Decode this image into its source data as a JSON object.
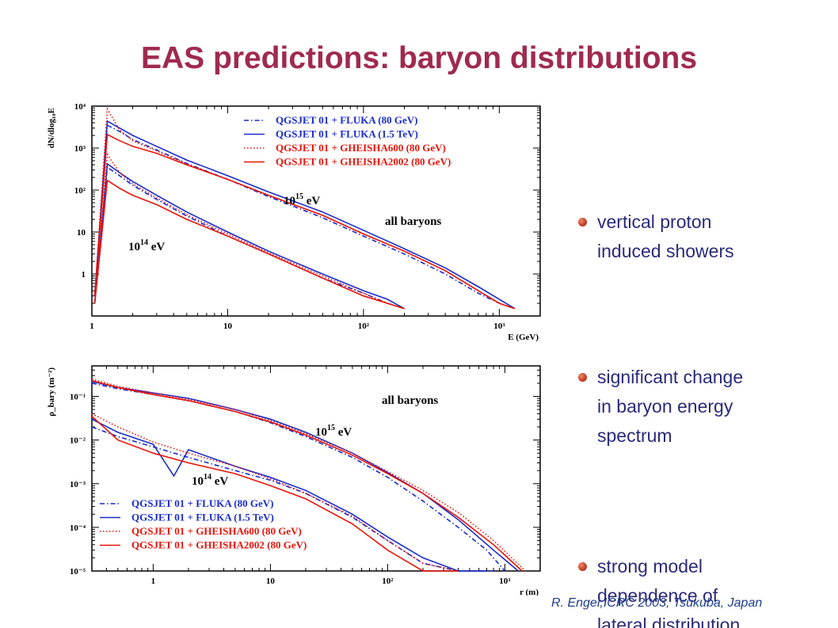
{
  "title": "EAS predictions: baryon distributions",
  "bullets": [
    {
      "lines": [
        "vertical proton",
        "induced showers"
      ]
    },
    {
      "lines": [
        "significant change",
        "in baryon energy",
        "spectrum"
      ]
    },
    {
      "lines": [
        "strong model",
        "dependence of",
        "lateral distribution"
      ]
    }
  ],
  "footer": "R. Engel,ICRC 2003, Tsukuba, Japan",
  "colors": {
    "blue": "#1a2ccc",
    "red": "#e8140a",
    "title": "#a02a4f",
    "bullet_text": "#2a2a7a"
  },
  "chart_data": [
    {
      "type": "line",
      "ylabel": "dN/dlog₁₀E",
      "xlabel": "E (GeV)",
      "log_x": true,
      "log_y": true,
      "xlim": [
        1,
        2000
      ],
      "ylim": [
        0.1,
        10000
      ],
      "x_ticks": [
        "1",
        "10",
        "10²",
        "10³"
      ],
      "y_ticks": [
        "1",
        "10",
        "10²",
        "10³",
        "10⁴"
      ],
      "annotations": [
        {
          "base": "10",
          "exp": "15",
          "unit": " eV"
        },
        {
          "base": "10",
          "exp": "14",
          "unit": " eV"
        },
        {
          "text": "all baryons"
        }
      ],
      "legend": [
        {
          "label": "QGSJET 01 + FLUKA (80 GeV)",
          "color": "#1a2ccc",
          "dash": "dashdot"
        },
        {
          "label": "QGSJET 01 + FLUKA (1.5 TeV)",
          "color": "#1a2ccc",
          "dash": "solid"
        },
        {
          "label": "QGSJET 01 + GHEISHA600 (80 GeV)",
          "color": "#e8140a",
          "dash": "dot"
        },
        {
          "label": "QGSJET 01 + GHEISHA2002 (80 GeV)",
          "color": "#e8140a",
          "dash": "solid"
        }
      ],
      "legend_position": "top-right",
      "series": [
        {
          "group": "1e15",
          "color": "#1a2ccc",
          "dash": "dashdot",
          "x": [
            1.05,
            1.3,
            1.6,
            2,
            3,
            5,
            10,
            20,
            50,
            100,
            200,
            400,
            700,
            1000,
            1300
          ],
          "y": [
            0.3,
            3500,
            2500,
            1600,
            900,
            430,
            180,
            70,
            22,
            8,
            3,
            1,
            0.35,
            0.2,
            0.15
          ]
        },
        {
          "group": "1e15",
          "color": "#1a2ccc",
          "dash": "solid",
          "x": [
            1.05,
            1.3,
            1.6,
            2,
            3,
            5,
            10,
            20,
            50,
            100,
            200,
            400,
            700,
            1000,
            1300
          ],
          "y": [
            0.3,
            4400,
            3000,
            2000,
            1100,
            520,
            220,
            90,
            30,
            11,
            4,
            1.4,
            0.5,
            0.25,
            0.15
          ]
        },
        {
          "group": "1e15",
          "color": "#e8140a",
          "dash": "dot",
          "x": [
            1.05,
            1.3,
            1.6,
            2,
            3,
            5,
            10,
            20,
            50,
            100,
            200,
            400,
            700,
            1000,
            1300
          ],
          "y": [
            0.3,
            8500,
            2700,
            1500,
            850,
            420,
            180,
            75,
            25,
            9,
            3.5,
            1.2,
            0.4,
            0.2,
            0.15
          ]
        },
        {
          "group": "1e15",
          "color": "#e8140a",
          "dash": "solid",
          "x": [
            1.05,
            1.3,
            1.6,
            2,
            3,
            5,
            10,
            20,
            50,
            100,
            200,
            400,
            700,
            1000,
            1300
          ],
          "y": [
            0.3,
            2100,
            1500,
            1100,
            750,
            400,
            180,
            75,
            25,
            9,
            3.5,
            1.2,
            0.4,
            0.2,
            0.15
          ]
        },
        {
          "group": "1e14",
          "color": "#1a2ccc",
          "dash": "dashdot",
          "x": [
            1.05,
            1.3,
            1.6,
            2,
            3,
            5,
            10,
            20,
            50,
            100,
            150,
            200
          ],
          "y": [
            0.2,
            350,
            220,
            130,
            60,
            24,
            8,
            3,
            0.8,
            0.35,
            0.2,
            0.15
          ]
        },
        {
          "group": "1e14",
          "color": "#1a2ccc",
          "dash": "solid",
          "x": [
            1.05,
            1.3,
            1.6,
            2,
            3,
            5,
            10,
            20,
            50,
            100,
            150,
            200
          ],
          "y": [
            0.2,
            420,
            260,
            160,
            75,
            30,
            10,
            3.5,
            1,
            0.4,
            0.25,
            0.15
          ]
        },
        {
          "group": "1e14",
          "color": "#e8140a",
          "dash": "dot",
          "x": [
            1.05,
            1.3,
            1.6,
            2,
            3,
            5,
            10,
            20,
            50,
            100,
            150,
            200
          ],
          "y": [
            0.2,
            700,
            260,
            140,
            65,
            26,
            9,
            3.2,
            0.9,
            0.35,
            0.2,
            0.15
          ]
        },
        {
          "group": "1e14",
          "color": "#e8140a",
          "dash": "solid",
          "x": [
            1.05,
            1.3,
            1.6,
            2,
            3,
            5,
            10,
            20,
            50,
            100,
            150,
            200
          ],
          "y": [
            0.2,
            170,
            110,
            75,
            45,
            20,
            8,
            3,
            0.8,
            0.3,
            0.2,
            0.15
          ]
        }
      ]
    },
    {
      "type": "line",
      "ylabel": "ρ_bary (m⁻²)",
      "xlabel": "r (m)",
      "log_x": true,
      "log_y": true,
      "xlim": [
        0.3,
        2000
      ],
      "ylim": [
        1e-05,
        0.5
      ],
      "x_ticks": [
        "1",
        "10",
        "10²",
        "10³"
      ],
      "y_ticks": [
        "10⁻¹",
        "10⁻²",
        "10⁻³",
        "10⁻⁴",
        "10⁻⁵"
      ],
      "annotations": [
        {
          "text": "all baryons"
        },
        {
          "base": "10",
          "exp": "15",
          "unit": " eV"
        },
        {
          "base": "10",
          "exp": "14",
          "unit": " eV"
        }
      ],
      "legend": [
        {
          "label": "QGSJET 01 + FLUKA (80 GeV)",
          "color": "#1a2ccc",
          "dash": "dashdot"
        },
        {
          "label": "QGSJET 01 + FLUKA (1.5 TeV)",
          "color": "#1a2ccc",
          "dash": "solid"
        },
        {
          "label": "QGSJET 01 + GHEISHA600 (80 GeV)",
          "color": "#e8140a",
          "dash": "dot"
        },
        {
          "label": "QGSJET 01 + GHEISHA2002 (80 GeV)",
          "color": "#e8140a",
          "dash": "solid"
        }
      ],
      "legend_position": "bottom-left",
      "series": [
        {
          "group": "1e15",
          "color": "#1a2ccc",
          "dash": "dashdot",
          "x": [
            0.3,
            0.5,
            1,
            2,
            5,
            10,
            20,
            50,
            100,
            200,
            400,
            700,
            1000
          ],
          "y": [
            0.2,
            0.15,
            0.11,
            0.08,
            0.045,
            0.025,
            0.012,
            0.004,
            0.0014,
            0.0004,
            0.0001,
            3e-05,
            1e-05
          ]
        },
        {
          "group": "1e15",
          "color": "#1a2ccc",
          "dash": "solid",
          "x": [
            0.3,
            0.5,
            1,
            2,
            5,
            10,
            20,
            50,
            100,
            200,
            400,
            800,
            1300
          ],
          "y": [
            0.22,
            0.16,
            0.12,
            0.09,
            0.05,
            0.03,
            0.015,
            0.005,
            0.0018,
            0.0006,
            0.00015,
            3e-05,
            1e-05
          ]
        },
        {
          "group": "1e15",
          "color": "#e8140a",
          "dash": "dot",
          "x": [
            0.3,
            0.5,
            1,
            2,
            5,
            10,
            20,
            50,
            100,
            200,
            400,
            800,
            1500
          ],
          "y": [
            0.25,
            0.17,
            0.12,
            0.085,
            0.05,
            0.028,
            0.014,
            0.005,
            0.0019,
            0.0007,
            0.00022,
            5e-05,
            1e-05
          ]
        },
        {
          "group": "1e15",
          "color": "#e8140a",
          "dash": "solid",
          "x": [
            0.3,
            0.5,
            1,
            2,
            5,
            10,
            20,
            50,
            100,
            200,
            400,
            800,
            1400
          ],
          "y": [
            0.23,
            0.16,
            0.11,
            0.08,
            0.045,
            0.026,
            0.013,
            0.0045,
            0.0017,
            0.0006,
            0.00017,
            4e-05,
            1e-05
          ]
        },
        {
          "group": "1e14",
          "color": "#1a2ccc",
          "dash": "dashdot",
          "x": [
            0.3,
            0.5,
            1,
            2,
            5,
            10,
            20,
            50,
            100,
            200,
            400,
            800
          ],
          "y": [
            0.02,
            0.012,
            0.007,
            0.004,
            0.002,
            0.0012,
            0.0006,
            0.00017,
            5e-05,
            1.5e-05,
            1e-05,
            1e-05
          ]
        },
        {
          "group": "1e14",
          "color": "#1a2ccc",
          "dash": "solid",
          "x": [
            0.3,
            0.5,
            1,
            1.5,
            2,
            5,
            10,
            20,
            50,
            100,
            200,
            400,
            700
          ],
          "y": [
            0.03,
            0.015,
            0.008,
            0.0015,
            0.006,
            0.0025,
            0.0014,
            0.0007,
            0.0002,
            6e-05,
            2e-05,
            1e-05,
            1e-05
          ]
        },
        {
          "group": "1e14",
          "color": "#e8140a",
          "dash": "dot",
          "x": [
            0.3,
            0.5,
            1,
            2,
            5,
            10,
            20,
            50,
            100,
            200,
            400
          ],
          "y": [
            0.04,
            0.02,
            0.009,
            0.005,
            0.0025,
            0.0013,
            0.0006,
            0.00018,
            5e-05,
            1.5e-05,
            1e-05
          ]
        },
        {
          "group": "1e14",
          "color": "#e8140a",
          "dash": "solid",
          "x": [
            0.3,
            0.5,
            1,
            2,
            5,
            10,
            20,
            50,
            100,
            200,
            400
          ],
          "y": [
            0.035,
            0.01,
            0.005,
            0.003,
            0.0017,
            0.0009,
            0.00045,
            0.00012,
            3e-05,
            1e-05,
            1e-05
          ]
        }
      ]
    }
  ]
}
